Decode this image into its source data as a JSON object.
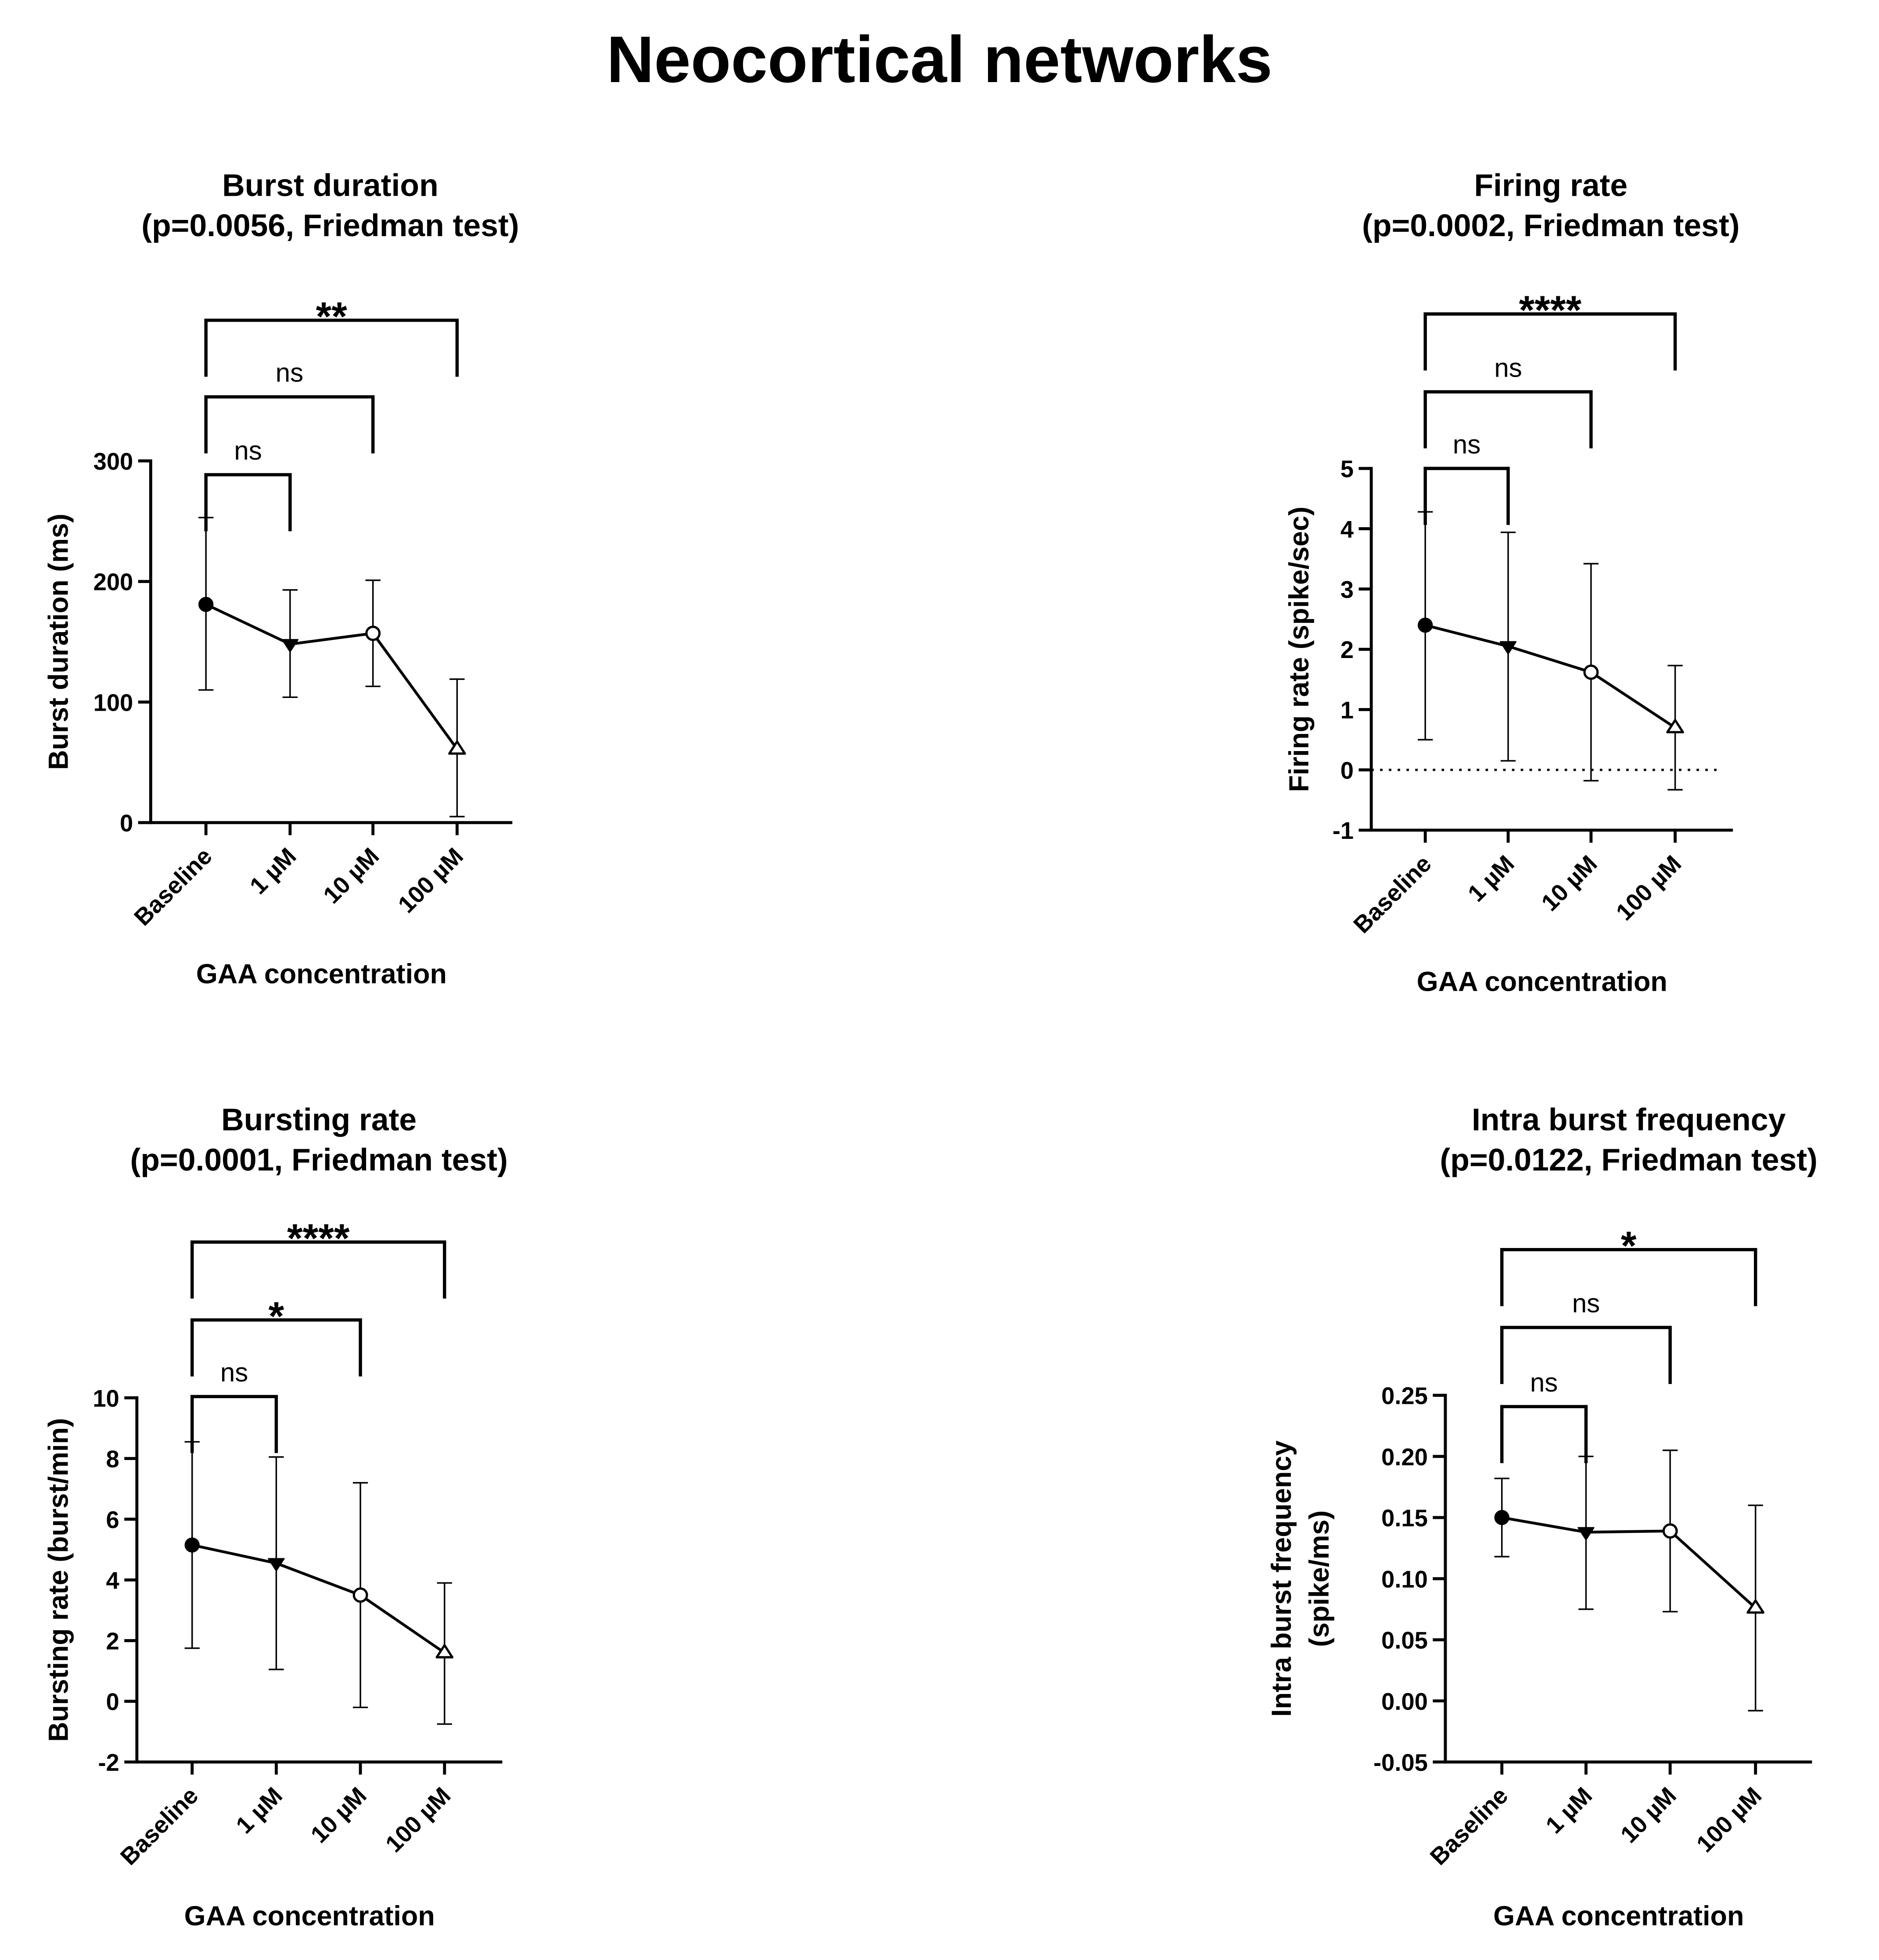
{
  "figure": {
    "title": "Neocortical networks"
  },
  "chart_data": [
    {
      "type": "line",
      "title": "Burst duration",
      "subtitle": "(p=0.0056, Friedman test)",
      "xlabel": "GAA concentration",
      "ylabel": "Burst duration (ms)",
      "categories": [
        "Baseline",
        "1 µM",
        "10 µM",
        "100 µM"
      ],
      "markers": [
        "filled-circle",
        "filled-triangle-down",
        "open-circle",
        "open-triangle-up"
      ],
      "values": [
        181,
        148,
        157,
        61
      ],
      "err_low": [
        110,
        104,
        113,
        5
      ],
      "err_high": [
        253,
        193,
        201,
        119
      ],
      "ylim": [
        0,
        300
      ],
      "yticks": [
        0,
        100,
        200,
        300
      ],
      "ytick_labels": [
        "0",
        "100",
        "200",
        "300"
      ],
      "zero_line": false,
      "comparisons": [
        {
          "from": "Baseline",
          "to": "1 µM",
          "label": "ns"
        },
        {
          "from": "Baseline",
          "to": "10 µM",
          "label": "ns"
        },
        {
          "from": "Baseline",
          "to": "100 µM",
          "label": "**"
        }
      ]
    },
    {
      "type": "line",
      "title": "Firing rate",
      "subtitle": "(p=0.0002, Friedman test)",
      "xlabel": "GAA concentration",
      "ylabel": "Firing rate (spike/sec)",
      "categories": [
        "Baseline",
        "1 µM",
        "10 µM",
        "100 µM"
      ],
      "markers": [
        "filled-circle",
        "filled-triangle-down",
        "open-circle",
        "open-triangle-up"
      ],
      "values": [
        2.4,
        2.05,
        1.62,
        0.7
      ],
      "err_low": [
        0.5,
        0.15,
        -0.18,
        -0.33
      ],
      "err_high": [
        4.28,
        3.94,
        3.42,
        1.73
      ],
      "ylim": [
        -1,
        5
      ],
      "yticks": [
        -1,
        0,
        1,
        2,
        3,
        4,
        5
      ],
      "ytick_labels": [
        "-1",
        "0",
        "1",
        "2",
        "3",
        "4",
        "5"
      ],
      "zero_line": true,
      "comparisons": [
        {
          "from": "Baseline",
          "to": "1 µM",
          "label": "ns"
        },
        {
          "from": "Baseline",
          "to": "10 µM",
          "label": "ns"
        },
        {
          "from": "Baseline",
          "to": "100 µM",
          "label": "****"
        }
      ]
    },
    {
      "type": "line",
      "title": "Bursting rate",
      "subtitle": "(p=0.0001, Friedman test)",
      "xlabel": "GAA concentration",
      "ylabel": "Bursting rate (burst/min)",
      "categories": [
        "Baseline",
        "1 µM",
        "10 µM",
        "100 µM"
      ],
      "markers": [
        "filled-circle",
        "filled-triangle-down",
        "open-circle",
        "open-triangle-up"
      ],
      "values": [
        5.15,
        4.55,
        3.5,
        1.6
      ],
      "err_low": [
        1.75,
        1.05,
        -0.2,
        -0.75
      ],
      "err_high": [
        8.55,
        8.05,
        7.2,
        3.9
      ],
      "ylim": [
        -2,
        10
      ],
      "yticks": [
        -2,
        0,
        2,
        4,
        6,
        8,
        10
      ],
      "ytick_labels": [
        "-2",
        "0",
        "2",
        "4",
        "6",
        "8",
        "10"
      ],
      "zero_line": false,
      "comparisons": [
        {
          "from": "Baseline",
          "to": "1 µM",
          "label": "ns"
        },
        {
          "from": "Baseline",
          "to": "10 µM",
          "label": "*"
        },
        {
          "from": "Baseline",
          "to": "100 µM",
          "label": "****"
        }
      ]
    },
    {
      "type": "line",
      "title": "Intra burst frequency",
      "subtitle": "(p=0.0122, Friedman test)",
      "xlabel": "GAA concentration",
      "ylabel": "Intra burst frequency",
      "ylabel2": "(spike/ms)",
      "categories": [
        "Baseline",
        "1 µM",
        "10 µM",
        "100 µM"
      ],
      "markers": [
        "filled-circle",
        "filled-triangle-down",
        "open-circle",
        "open-triangle-up"
      ],
      "values": [
        0.15,
        0.138,
        0.139,
        0.076
      ],
      "err_low": [
        0.118,
        0.075,
        0.073,
        -0.008
      ],
      "err_high": [
        0.182,
        0.2,
        0.205,
        0.16
      ],
      "ylim": [
        -0.05,
        0.25
      ],
      "yticks": [
        -0.05,
        0,
        0.05,
        0.1,
        0.15,
        0.2,
        0.25
      ],
      "ytick_labels": [
        "-0.05",
        "0.00",
        "0.05",
        "0.10",
        "0.15",
        "0.20",
        "0.25"
      ],
      "zero_line": false,
      "comparisons": [
        {
          "from": "Baseline",
          "to": "1 µM",
          "label": "ns"
        },
        {
          "from": "Baseline",
          "to": "10 µM",
          "label": "ns"
        },
        {
          "from": "Baseline",
          "to": "100 µM",
          "label": "*"
        }
      ]
    }
  ]
}
